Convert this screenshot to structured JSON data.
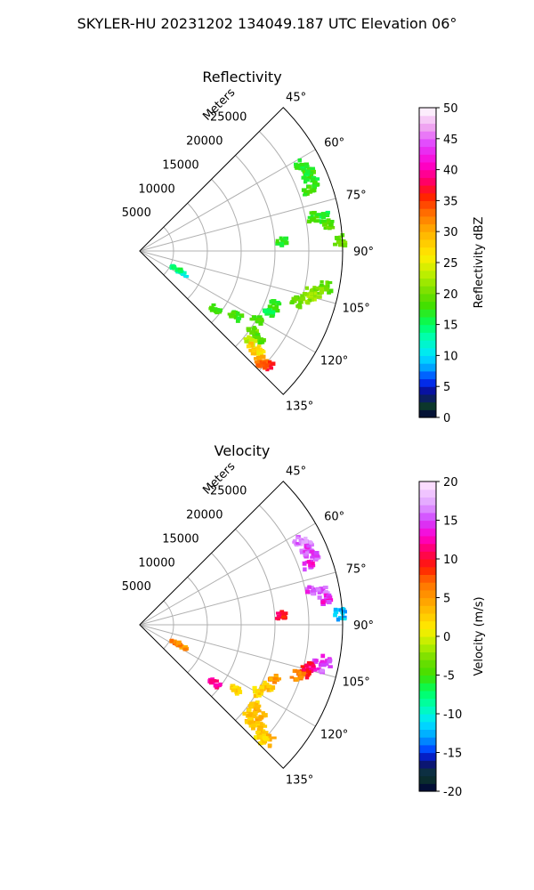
{
  "figure": {
    "title": "SKYLER-HU  20231202  134049.187 UTC Elevation 06°"
  },
  "chart_data": [
    {
      "type": "heatmap",
      "subtype": "radar-sector-ppi",
      "title": "Reflectivity",
      "radial_label": "Meters",
      "range_ticks": [
        5000,
        10000,
        15000,
        20000,
        25000
      ],
      "range_max": 30000,
      "azimuth_range": [
        45,
        135
      ],
      "azimuth_ticks": [
        "45°",
        "60°",
        "75°",
        "90°",
        "105°",
        "120°",
        "135°"
      ],
      "grid": true,
      "colorbar": {
        "label": "Reflectivity dBZ",
        "min": 0,
        "max": 50,
        "ticks": [
          0,
          5,
          10,
          15,
          20,
          25,
          30,
          35,
          40,
          45,
          50
        ],
        "stops": [
          [
            0,
            "#00003a"
          ],
          [
            2,
            "#0d3b2a"
          ],
          [
            4,
            "#0a0a8a"
          ],
          [
            6,
            "#0033ff"
          ],
          [
            8,
            "#00a0ff"
          ],
          [
            10,
            "#00e5ff"
          ],
          [
            13,
            "#00ffb0"
          ],
          [
            15,
            "#00ff60"
          ],
          [
            18,
            "#40e000"
          ],
          [
            20,
            "#70dd00"
          ],
          [
            23,
            "#b8ee00"
          ],
          [
            26,
            "#ffee00"
          ],
          [
            30,
            "#ffb000"
          ],
          [
            33,
            "#ff7000"
          ],
          [
            36,
            "#ff1a00"
          ],
          [
            38,
            "#ff0060"
          ],
          [
            41,
            "#ff00d0"
          ],
          [
            44,
            "#e040ff"
          ],
          [
            47,
            "#f0a8f0"
          ],
          [
            50,
            "#ffffff"
          ]
        ]
      },
      "echoes": [
        {
          "az": 62,
          "r": 26500,
          "v": 17
        },
        {
          "az": 64,
          "r": 27500,
          "v": 18
        },
        {
          "az": 66,
          "r": 27000,
          "v": 16
        },
        {
          "az": 68,
          "r": 27500,
          "v": 17
        },
        {
          "az": 70,
          "r": 26500,
          "v": 18
        },
        {
          "az": 79,
          "r": 26000,
          "v": 18
        },
        {
          "az": 80,
          "r": 27500,
          "v": 16
        },
        {
          "az": 82,
          "r": 28000,
          "v": 19
        },
        {
          "az": 87,
          "r": 29500,
          "v": 20
        },
        {
          "az": 86,
          "r": 21000,
          "v": 17
        },
        {
          "az": 101,
          "r": 28000,
          "v": 19
        },
        {
          "az": 103,
          "r": 27000,
          "v": 21
        },
        {
          "az": 104,
          "r": 26000,
          "v": 22
        },
        {
          "az": 106,
          "r": 25500,
          "v": 21
        },
        {
          "az": 108,
          "r": 24500,
          "v": 19
        },
        {
          "az": 112,
          "r": 21500,
          "v": 17
        },
        {
          "az": 116,
          "r": 21000,
          "v": 16
        },
        {
          "az": 120,
          "r": 20000,
          "v": 18
        },
        {
          "az": 124,
          "r": 17000,
          "v": 18
        },
        {
          "az": 125,
          "r": 20500,
          "v": 20
        },
        {
          "az": 127,
          "r": 22000,
          "v": 19
        },
        {
          "az": 129,
          "r": 21000,
          "v": 23
        },
        {
          "az": 130,
          "r": 23000,
          "v": 26
        },
        {
          "az": 131,
          "r": 22000,
          "v": 28
        },
        {
          "az": 132,
          "r": 24000,
          "v": 30
        },
        {
          "az": 132,
          "r": 25500,
          "v": 36
        },
        {
          "az": 133,
          "r": 24500,
          "v": 33
        },
        {
          "az": 128,
          "r": 14000,
          "v": 18
        },
        {
          "az": 118,
          "r": 7000,
          "v": 12
        },
        {
          "az": 116,
          "r": 6000,
          "v": 15
        }
      ]
    },
    {
      "type": "heatmap",
      "subtype": "radar-sector-ppi",
      "title": "Velocity",
      "radial_label": "Meters",
      "range_ticks": [
        5000,
        10000,
        15000,
        20000,
        25000
      ],
      "range_max": 30000,
      "azimuth_range": [
        45,
        135
      ],
      "azimuth_ticks": [
        "45°",
        "60°",
        "75°",
        "90°",
        "105°",
        "120°",
        "135°"
      ],
      "grid": true,
      "colorbar": {
        "label": "Velocity (m/s)",
        "min": -20,
        "max": 20,
        "ticks": [
          -20,
          -15,
          -10,
          -5,
          0,
          5,
          10,
          15,
          20
        ],
        "stops": [
          [
            -20,
            "#00003a"
          ],
          [
            -18,
            "#0d3b2a"
          ],
          [
            -16,
            "#0a0a8a"
          ],
          [
            -15,
            "#0033ff"
          ],
          [
            -13,
            "#00a0ff"
          ],
          [
            -11,
            "#00e5ff"
          ],
          [
            -9,
            "#00ffb0"
          ],
          [
            -7,
            "#00ff60"
          ],
          [
            -5,
            "#40e000"
          ],
          [
            -3,
            "#70dd00"
          ],
          [
            -1,
            "#b8ee00"
          ],
          [
            1,
            "#ffee00"
          ],
          [
            4,
            "#ffb000"
          ],
          [
            7,
            "#ff7000"
          ],
          [
            9,
            "#ff1a00"
          ],
          [
            11,
            "#ff0060"
          ],
          [
            13,
            "#ff00d0"
          ],
          [
            15,
            "#d040ff"
          ],
          [
            17,
            "#e0a0ff"
          ],
          [
            20,
            "#ffe8ff"
          ]
        ]
      },
      "echoes": [
        {
          "az": 62,
          "r": 26500,
          "v": 16
        },
        {
          "az": 64,
          "r": 27500,
          "v": 17
        },
        {
          "az": 66,
          "r": 27000,
          "v": 15
        },
        {
          "az": 68,
          "r": 27500,
          "v": 15
        },
        {
          "az": 70,
          "r": 26500,
          "v": 14
        },
        {
          "az": 79,
          "r": 26000,
          "v": 15
        },
        {
          "az": 80,
          "r": 27500,
          "v": 16
        },
        {
          "az": 82,
          "r": 28000,
          "v": 14
        },
        {
          "az": 87,
          "r": 29500,
          "v": -12
        },
        {
          "az": 86,
          "r": 21000,
          "v": 10
        },
        {
          "az": 101,
          "r": 28000,
          "v": 15
        },
        {
          "az": 103,
          "r": 27000,
          "v": 15
        },
        {
          "az": 104,
          "r": 26000,
          "v": 11
        },
        {
          "az": 106,
          "r": 25500,
          "v": 10
        },
        {
          "az": 108,
          "r": 24500,
          "v": 6
        },
        {
          "az": 112,
          "r": 21500,
          "v": 5
        },
        {
          "az": 116,
          "r": 21000,
          "v": 3
        },
        {
          "az": 120,
          "r": 20000,
          "v": 2
        },
        {
          "az": 124,
          "r": 17000,
          "v": 2
        },
        {
          "az": 125,
          "r": 20500,
          "v": 3
        },
        {
          "az": 127,
          "r": 22000,
          "v": 4
        },
        {
          "az": 129,
          "r": 21000,
          "v": 3
        },
        {
          "az": 130,
          "r": 23000,
          "v": 4
        },
        {
          "az": 131,
          "r": 22000,
          "v": 3
        },
        {
          "az": 132,
          "r": 24000,
          "v": 3
        },
        {
          "az": 132,
          "r": 25500,
          "v": 4
        },
        {
          "az": 133,
          "r": 24500,
          "v": 2
        },
        {
          "az": 128,
          "r": 14000,
          "v": 12
        },
        {
          "az": 118,
          "r": 7000,
          "v": 5
        },
        {
          "az": 116,
          "r": 6000,
          "v": 6
        }
      ]
    }
  ]
}
